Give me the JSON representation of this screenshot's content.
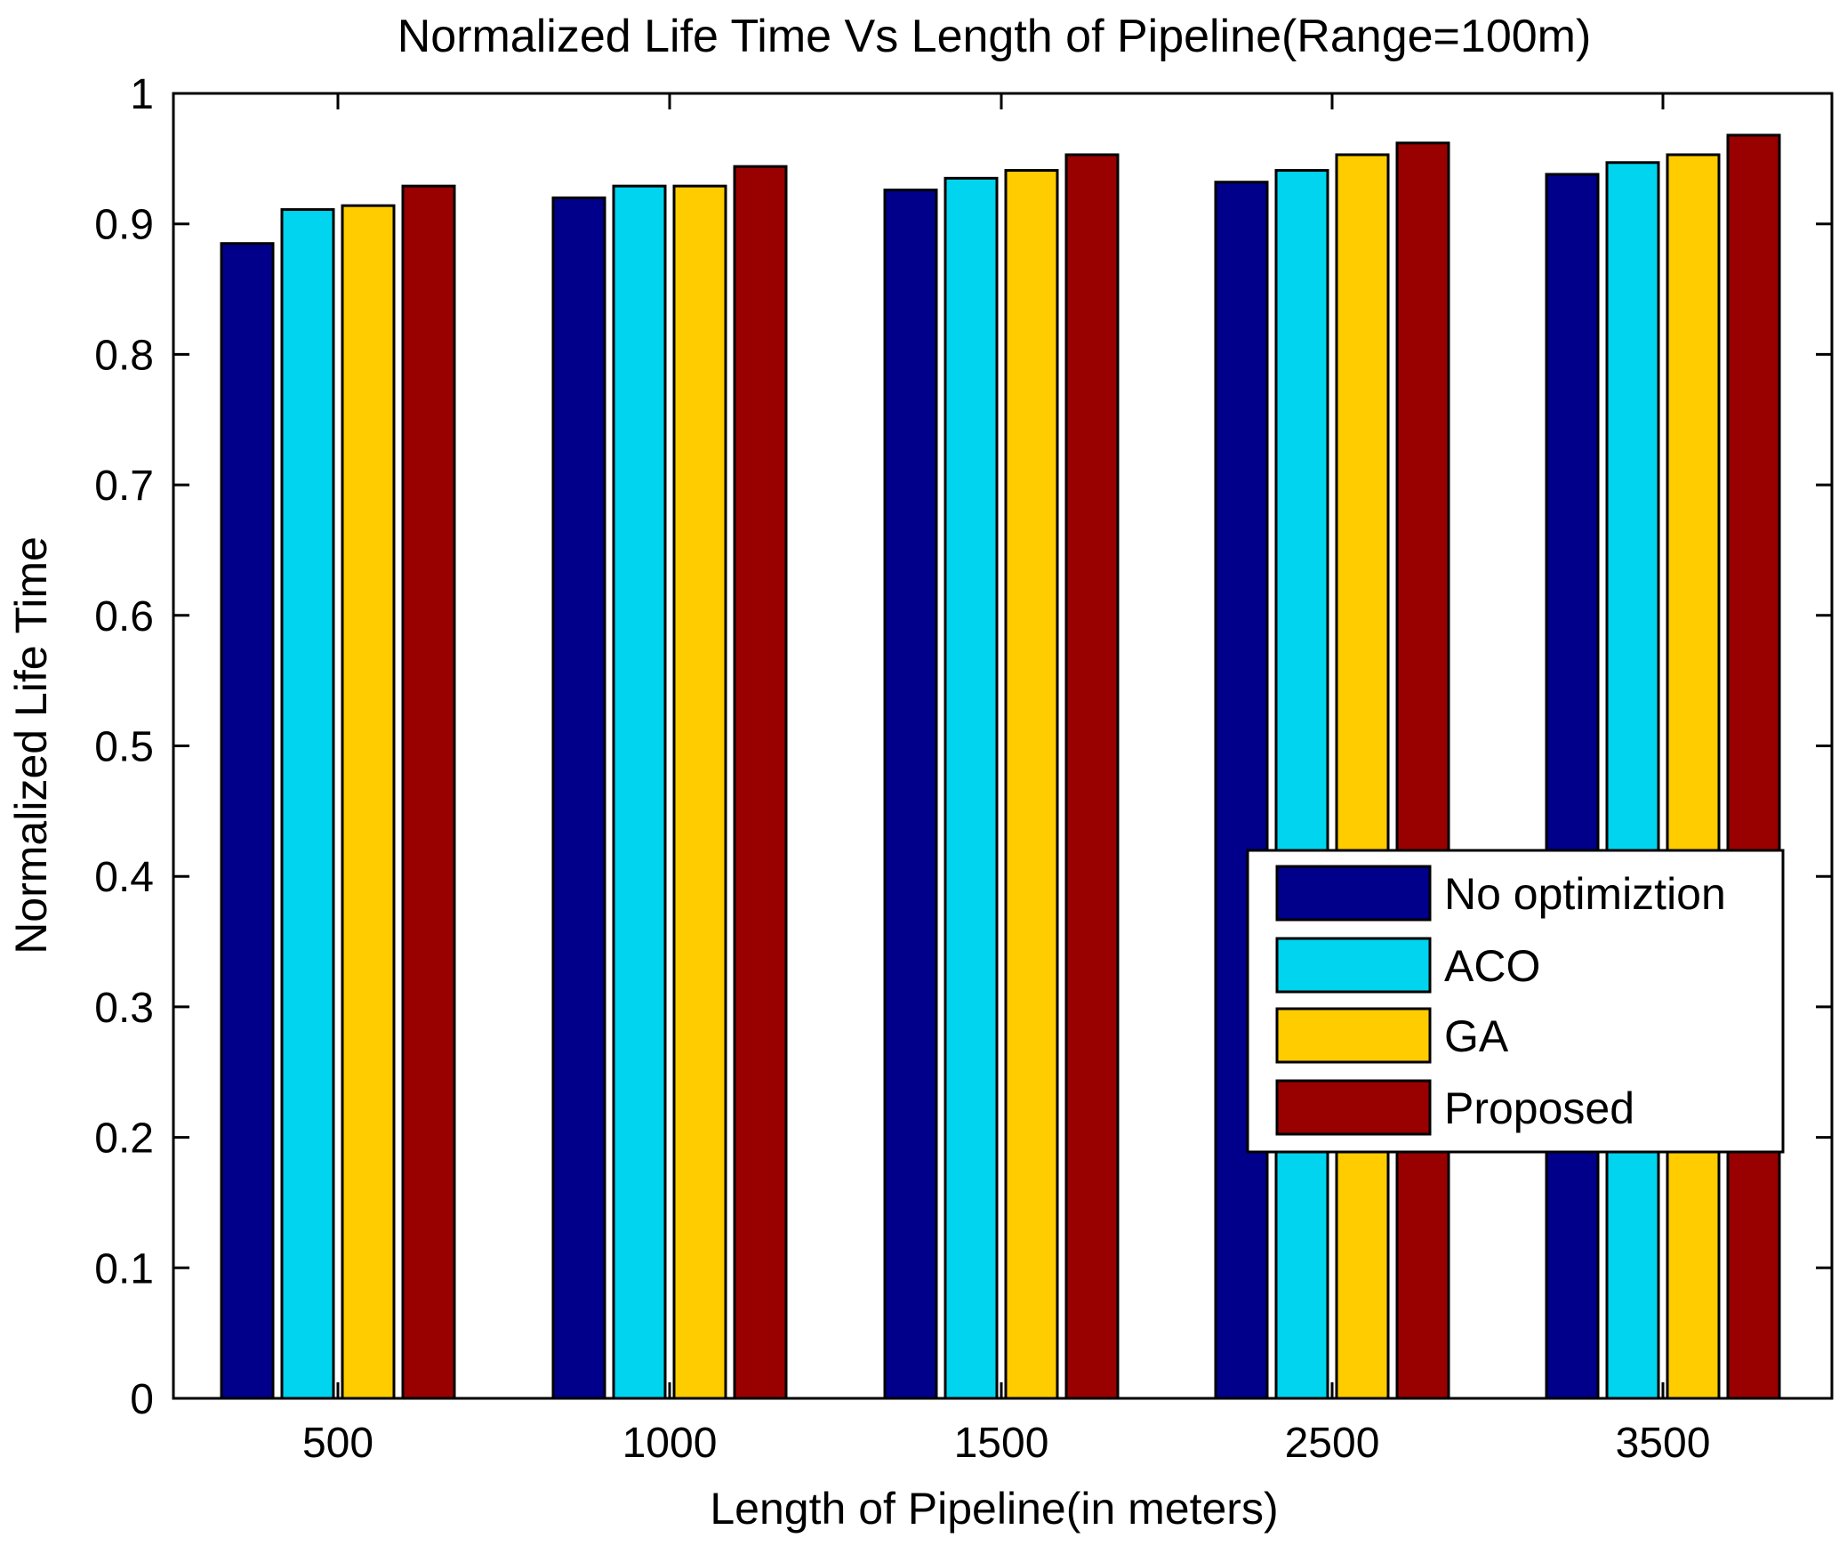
{
  "chart_data": {
    "type": "bar",
    "title": "Normalized Life Time Vs Length of Pipeline(Range=100m)",
    "xlabel": "Length of Pipeline(in meters)",
    "ylabel": "Normalized Life Time",
    "categories": [
      "500",
      "1000",
      "1500",
      "2500",
      "3500"
    ],
    "ylim": [
      0,
      1
    ],
    "yticks": [
      0,
      0.1,
      0.2,
      0.3,
      0.4,
      0.5,
      0.6,
      0.7,
      0.8,
      0.9,
      1
    ],
    "ytick_labels": [
      "0",
      "0.1",
      "0.2",
      "0.3",
      "0.4",
      "0.5",
      "0.6",
      "0.7",
      "0.8",
      "0.9",
      "1"
    ],
    "legend_position": "lower-right",
    "series": [
      {
        "name": "No optimiztion",
        "color": "#00008b",
        "values": [
          0.885,
          0.92,
          0.926,
          0.932,
          0.938
        ]
      },
      {
        "name": "ACO",
        "color": "#00d4ee",
        "values": [
          0.911,
          0.929,
          0.935,
          0.941,
          0.947
        ]
      },
      {
        "name": "GA",
        "color": "#ffcc00",
        "values": [
          0.914,
          0.929,
          0.941,
          0.953,
          0.953
        ]
      },
      {
        "name": "Proposed",
        "color": "#990000",
        "values": [
          0.929,
          0.944,
          0.953,
          0.962,
          0.968
        ]
      }
    ]
  }
}
